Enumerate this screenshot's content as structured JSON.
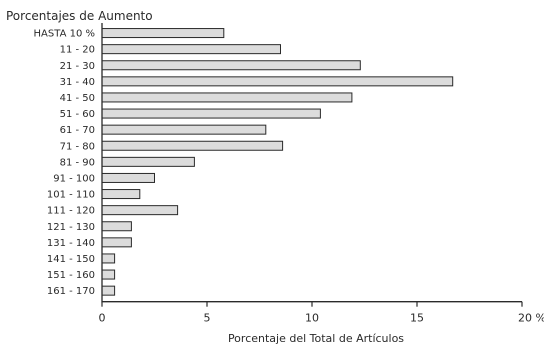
{
  "chart_data": {
    "type": "bar",
    "orientation": "horizontal",
    "title": "Porcentajes de Aumento",
    "xlabel": "Porcentaje del Total de Artículos",
    "ylabel": "",
    "categories": [
      "HASTA 10 %",
      "11 - 20",
      "21 - 30",
      "31 - 40",
      "41 - 50",
      "51 - 60",
      "61 - 70",
      "71 - 80",
      "81 - 90",
      "91 - 100",
      "101 - 110",
      "111 - 120",
      "121 - 130",
      "131 - 140",
      "141 - 150",
      "151 - 160",
      "161 - 170"
    ],
    "values": [
      5.8,
      8.5,
      12.3,
      16.7,
      11.9,
      10.4,
      7.8,
      8.6,
      4.4,
      2.5,
      1.8,
      3.6,
      1.4,
      1.4,
      0.6,
      0.6,
      0.6
    ],
    "xlim": [
      0,
      20
    ],
    "xticks": [
      {
        "value": 0,
        "label": "0"
      },
      {
        "value": 5,
        "label": "5"
      },
      {
        "value": 10,
        "label": "10"
      },
      {
        "value": 15,
        "label": "15"
      },
      {
        "value": 20,
        "label": "20 %"
      }
    ],
    "grid": false,
    "legend": "none"
  }
}
